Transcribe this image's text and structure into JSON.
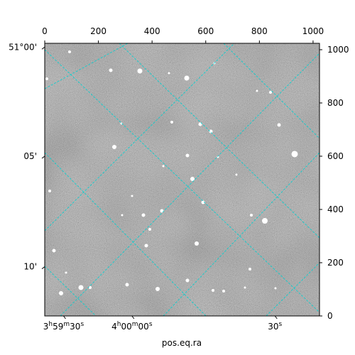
{
  "chart_data": {
    "type": "image",
    "xlabel": "pos.eq.ra",
    "pixel_axes": {
      "x_range": [
        0,
        1024
      ],
      "y_range": [
        0,
        1024
      ],
      "top_ticks": [
        "0",
        "200",
        "400",
        "600",
        "800",
        "1000"
      ],
      "top_tick_values": [
        0,
        200,
        400,
        600,
        800,
        1000
      ],
      "right_ticks": [
        "1000",
        "800",
        "600",
        "400",
        "200",
        "0"
      ],
      "right_tick_values": [
        1000,
        800,
        600,
        400,
        200,
        0
      ]
    },
    "world_axes": {
      "ra_ticks": [
        {
          "h": "3",
          "m": "59",
          "s": "30",
          "suffix": "s"
        },
        {
          "h": "4",
          "m": "00",
          "s": "00",
          "suffix": "s"
        },
        {
          "s": "30",
          "suffix": "s"
        }
      ],
      "ra_tick_x": [
        70,
        325,
        858
      ],
      "dec_ticks": [
        "51°00'",
        "05'",
        "10'"
      ],
      "dec_tick_y": [
        1010,
        600,
        185
      ]
    },
    "grid": true,
    "grid_color": "#00d0d0",
    "colormap": "gray"
  }
}
